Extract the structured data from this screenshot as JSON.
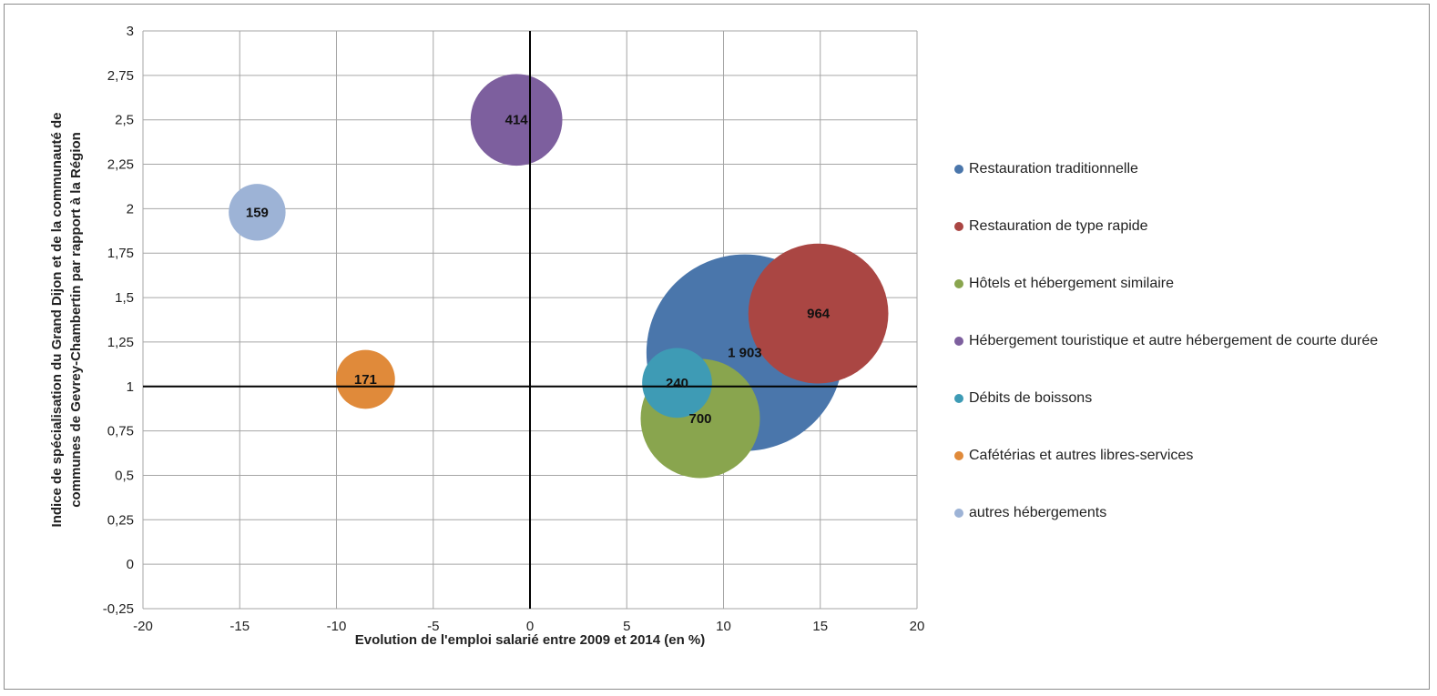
{
  "chart_data": {
    "type": "bubble",
    "title": "",
    "xlabel": "Evolution de l'emploi salarié entre 2009 et 2014 (en %)",
    "ylabel": "Indice de spécialisation du Grand Dijon et de la communauté de communes de Gevrey-Chambertin par rapport à la Région",
    "xlim": [
      -20,
      20
    ],
    "ylim": [
      -0.25,
      3
    ],
    "x_ticks": [
      "-20",
      "-15",
      "-10",
      "-5",
      "0",
      "5",
      "10",
      "15",
      "20"
    ],
    "y_ticks": [
      "3",
      "2,75",
      "2,5",
      "2,25",
      "2",
      "1,75",
      "1,5",
      "1,25",
      "1",
      "0,75",
      "0,5",
      "0,25",
      "0",
      "-0,25"
    ],
    "grid": true,
    "reference_lines": {
      "x": 0,
      "y": 1
    },
    "legend_position": "right",
    "series": [
      {
        "name": "Restauration traditionnelle",
        "x": 11.1,
        "y": 1.19,
        "size": 1903,
        "label": "1 903",
        "color": "#4a76ab"
      },
      {
        "name": "Restauration de type rapide",
        "x": 14.9,
        "y": 1.41,
        "size": 964,
        "label": "964",
        "color": "#aa4643"
      },
      {
        "name": "Hôtels et hébergement similaire",
        "x": 8.8,
        "y": 0.82,
        "size": 700,
        "label": "700",
        "color": "#89a54e"
      },
      {
        "name": "Hébergement touristique et autre hébergement de courte durée",
        "x": -0.7,
        "y": 2.5,
        "size": 414,
        "label": "414",
        "color": "#7d5f9e"
      },
      {
        "name": "Débits de boissons",
        "x": 7.6,
        "y": 1.02,
        "size": 240,
        "label": "240",
        "color": "#3e9bb5"
      },
      {
        "name": "Cafétérias et autres libres-services",
        "x": -8.5,
        "y": 1.04,
        "size": 171,
        "label": "171",
        "color": "#e08a3a"
      },
      {
        "name": "autres hébergements",
        "x": -14.1,
        "y": 1.98,
        "size": 159,
        "label": "159",
        "color": "#9db3d6"
      }
    ]
  }
}
